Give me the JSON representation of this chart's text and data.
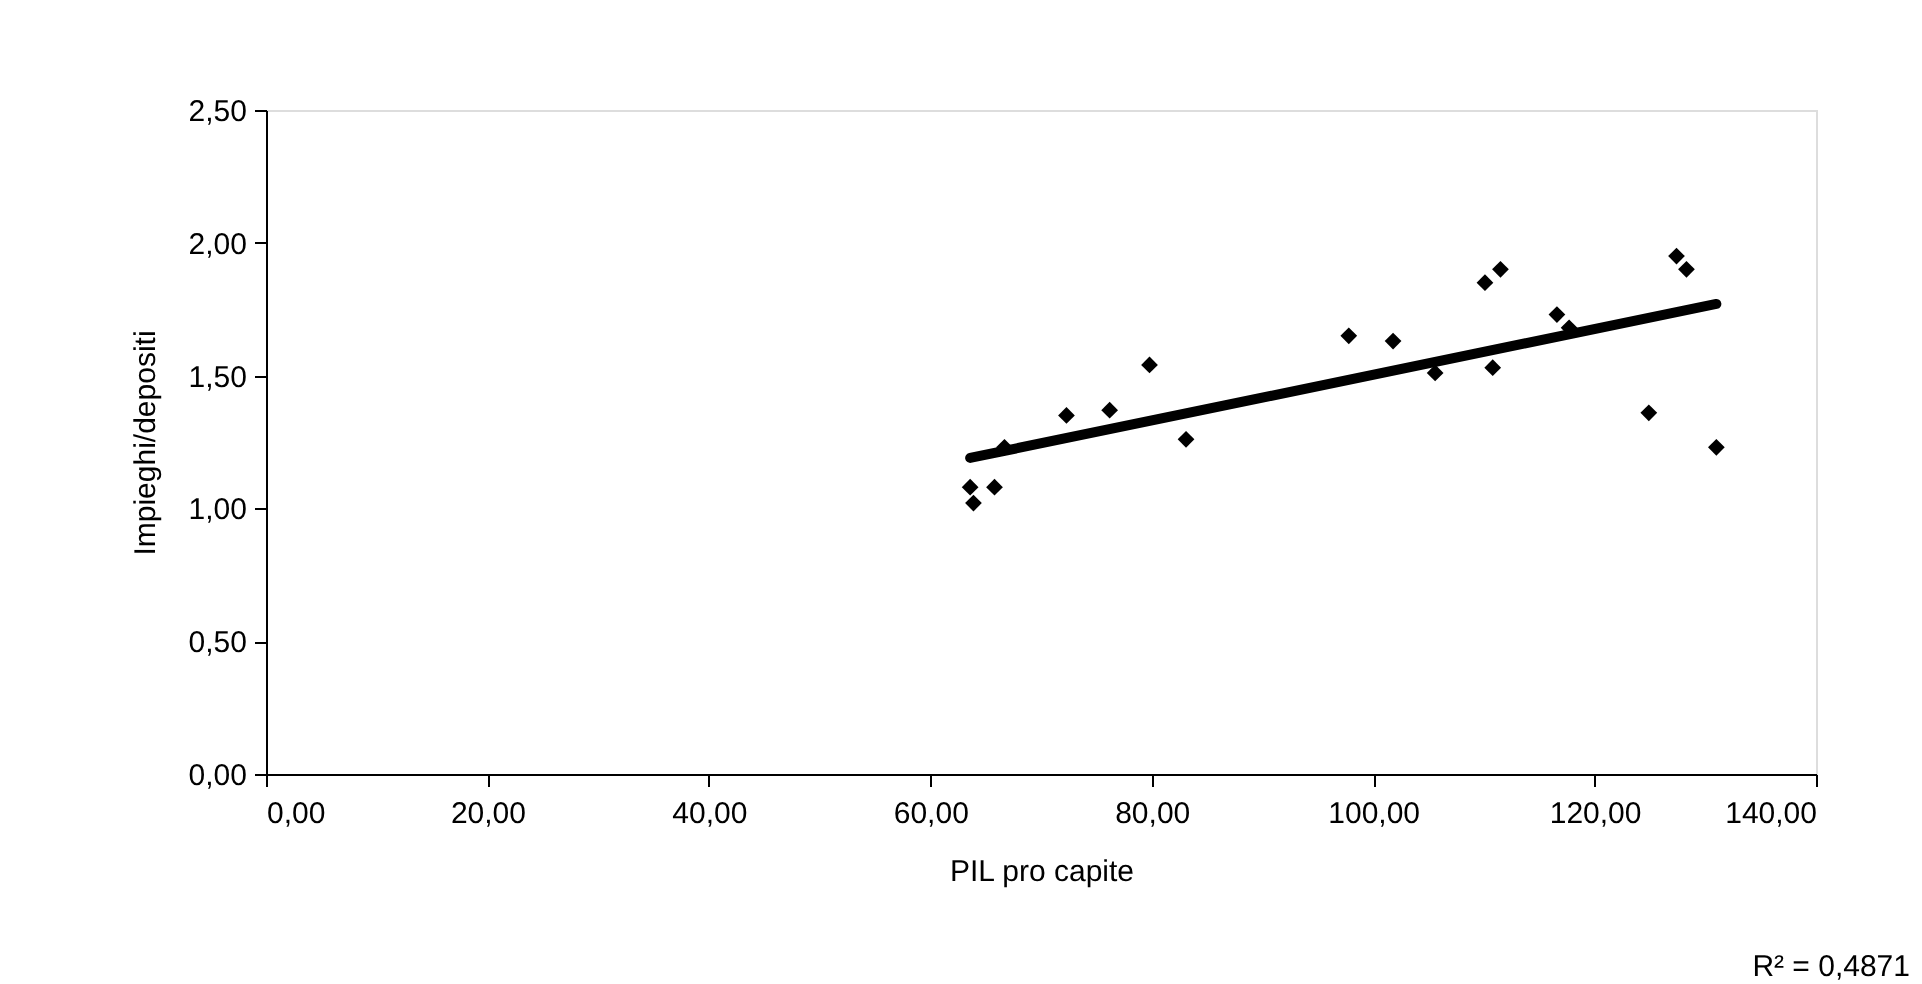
{
  "chart_data": {
    "type": "scatter",
    "xlabel": "PIL pro capite",
    "ylabel": "Impieghi/depositi",
    "xlim": [
      0,
      140
    ],
    "ylim": [
      0,
      2.5
    ],
    "xticks": [
      {
        "value": 0,
        "label": "0,00"
      },
      {
        "value": 20,
        "label": "20,00"
      },
      {
        "value": 40,
        "label": "40,00"
      },
      {
        "value": 60,
        "label": "60,00"
      },
      {
        "value": 80,
        "label": "80,00"
      },
      {
        "value": 100,
        "label": "100,00"
      },
      {
        "value": 120,
        "label": "120,00"
      },
      {
        "value": 140,
        "label": "140,00"
      }
    ],
    "yticks": [
      {
        "value": 0,
        "label": "0,00"
      },
      {
        "value": 0.5,
        "label": "0,50"
      },
      {
        "value": 1,
        "label": "1,00"
      },
      {
        "value": 1.5,
        "label": "1,50"
      },
      {
        "value": 2,
        "label": "2,00"
      },
      {
        "value": 2.5,
        "label": "2,50"
      }
    ],
    "grid": false,
    "series": [
      {
        "marker": "diamond",
        "color": "#000000",
        "x": [
          63.6,
          63.9,
          65.8,
          66.7,
          72.3,
          76.2,
          79.8,
          83.1,
          97.8,
          101.8,
          105.6,
          110.8,
          110.1,
          111.5,
          116.6,
          117.7,
          124.9,
          127.4,
          128.3,
          131.0
        ],
        "values": [
          1.08,
          1.02,
          1.08,
          1.23,
          1.35,
          1.37,
          1.54,
          1.26,
          1.65,
          1.63,
          1.51,
          1.53,
          1.85,
          1.9,
          1.73,
          1.68,
          1.36,
          1.95,
          1.9,
          1.23
        ]
      },
      {
        "type": "line",
        "marker": "none",
        "line_style": "solid",
        "color": "#000000",
        "x": [
          63.6,
          131.0
        ],
        "values": [
          1.19,
          1.77
        ]
      }
    ],
    "annotations": [
      "R² = 0,4871"
    ]
  }
}
